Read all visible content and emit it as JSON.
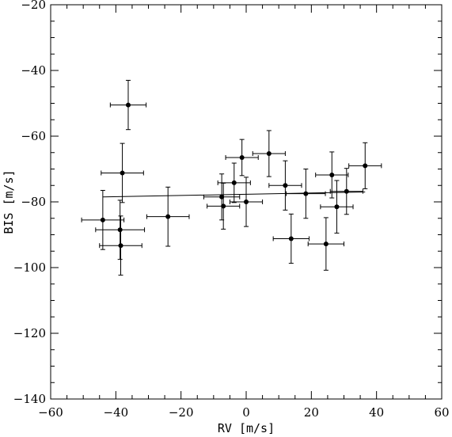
{
  "chart_data": {
    "type": "scatter",
    "title": "",
    "xlabel": "RV [m/s]",
    "ylabel": "BIS [m/s]",
    "xlim": [
      -60,
      60
    ],
    "ylim": [
      -140,
      -20
    ],
    "x_ticks": [
      -60,
      -40,
      -20,
      0,
      20,
      40,
      60
    ],
    "y_ticks": [
      -140,
      -120,
      -100,
      -80,
      -60,
      -40,
      -20
    ],
    "x_minor_step": 5,
    "y_minor_step": 5,
    "grid": false,
    "legend": "none",
    "points": [
      {
        "x": -36.2,
        "y": -50.5,
        "xerr": 5.5,
        "yerr": 7.5
      },
      {
        "x": -38.0,
        "y": -71.2,
        "xerr": 6.5,
        "yerr": 9.0
      },
      {
        "x": -44.0,
        "y": -85.5,
        "xerr": 6.5,
        "yerr": 9.0
      },
      {
        "x": -38.7,
        "y": -88.5,
        "xerr": 7.5,
        "yerr": 9.0
      },
      {
        "x": -38.5,
        "y": -93.3,
        "xerr": 6.5,
        "yerr": 9.0
      },
      {
        "x": -24.0,
        "y": -84.5,
        "xerr": 6.5,
        "yerr": 9.0
      },
      {
        "x": -7.5,
        "y": -78.5,
        "xerr": 5.5,
        "yerr": 7.0
      },
      {
        "x": -7.0,
        "y": -81.3,
        "xerr": 5.0,
        "yerr": 7.0
      },
      {
        "x": -3.7,
        "y": -74.2,
        "xerr": 5.0,
        "yerr": 6.0
      },
      {
        "x": -1.3,
        "y": -66.5,
        "xerr": 5.0,
        "yerr": 5.5
      },
      {
        "x": 0.0,
        "y": -80.0,
        "xerr": 5.0,
        "yerr": 7.5
      },
      {
        "x": 7.0,
        "y": -65.3,
        "xerr": 5.0,
        "yerr": 7.0
      },
      {
        "x": 12.0,
        "y": -75.0,
        "xerr": 5.0,
        "yerr": 7.5
      },
      {
        "x": 13.8,
        "y": -91.2,
        "xerr": 5.5,
        "yerr": 7.5
      },
      {
        "x": 18.3,
        "y": -77.5,
        "xerr": 6.0,
        "yerr": 7.5
      },
      {
        "x": 24.5,
        "y": -92.8,
        "xerr": 5.5,
        "yerr": 8.0
      },
      {
        "x": 26.3,
        "y": -71.8,
        "xerr": 5.0,
        "yerr": 7.0
      },
      {
        "x": 27.8,
        "y": -81.5,
        "xerr": 5.0,
        "yerr": 8.0
      },
      {
        "x": 30.8,
        "y": -76.8,
        "xerr": 5.0,
        "yerr": 7.0
      },
      {
        "x": 36.5,
        "y": -69.0,
        "xerr": 5.0,
        "yerr": 7.0
      }
    ],
    "fit_line": {
      "x": [
        -44.0,
        36.5
      ],
      "y": [
        -78.5,
        -77.0
      ]
    }
  }
}
